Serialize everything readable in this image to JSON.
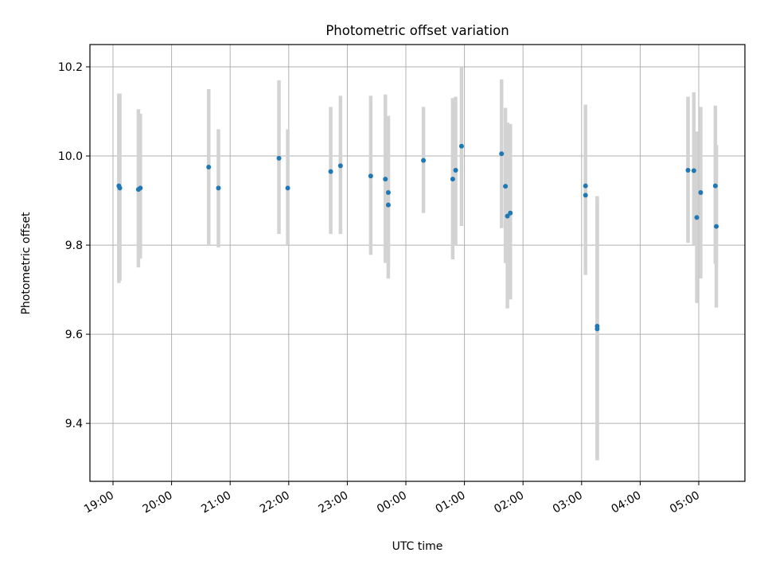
{
  "chart_data": {
    "type": "scatter",
    "title": "Photometric offset variation",
    "xlabel": "UTC time",
    "ylabel": "Photometric offset",
    "x_tick_labels": [
      "19:00",
      "20:00",
      "21:00",
      "22:00",
      "23:00",
      "00:00",
      "01:00",
      "02:00",
      "03:00",
      "04:00",
      "05:00"
    ],
    "y_tick_labels": [
      "9.4",
      "9.6",
      "9.8",
      "10.0",
      "10.2"
    ],
    "y_ticks": [
      9.4,
      9.6,
      9.8,
      10.0,
      10.2
    ],
    "ylim": [
      9.27,
      10.25
    ],
    "x_axis": "time of night, 19:00 to 05:00 UTC",
    "grid": true,
    "colors": {
      "points": "#1f77b4",
      "errorbars": "#d3d3d3",
      "grid": "#b0b0b0"
    },
    "points": [
      {
        "x": "19:06",
        "y": 9.933,
        "lo": 9.715,
        "hi": 10.14
      },
      {
        "x": "19:07",
        "y": 9.928,
        "lo": 9.72,
        "hi": 10.14
      },
      {
        "x": "19:26",
        "y": 9.925,
        "lo": 9.75,
        "hi": 10.105
      },
      {
        "x": "19:28",
        "y": 9.928,
        "lo": 9.77,
        "hi": 10.095
      },
      {
        "x": "20:38",
        "y": 9.975,
        "lo": 9.8,
        "hi": 10.15
      },
      {
        "x": "20:48",
        "y": 9.928,
        "lo": 9.795,
        "hi": 10.06
      },
      {
        "x": "21:50",
        "y": 9.995,
        "lo": 9.825,
        "hi": 10.17
      },
      {
        "x": "21:59",
        "y": 9.928,
        "lo": 9.8,
        "hi": 10.06
      },
      {
        "x": "22:43",
        "y": 9.965,
        "lo": 9.825,
        "hi": 10.11
      },
      {
        "x": "22:53",
        "y": 9.978,
        "lo": 9.825,
        "hi": 10.135
      },
      {
        "x": "23:24",
        "y": 9.955,
        "lo": 9.778,
        "hi": 10.135
      },
      {
        "x": "23:39",
        "y": 9.948,
        "lo": 9.76,
        "hi": 10.138
      },
      {
        "x": "23:42",
        "y": 9.918,
        "lo": 9.725,
        "hi": 10.09
      },
      {
        "x": "23:42",
        "y": 9.89,
        "lo": 9.75,
        "hi": 10.08
      },
      {
        "x": "00:18",
        "y": 9.99,
        "lo": 9.872,
        "hi": 10.11
      },
      {
        "x": "00:48",
        "y": 9.948,
        "lo": 9.768,
        "hi": 10.13
      },
      {
        "x": "00:51",
        "y": 9.968,
        "lo": 9.8,
        "hi": 10.133
      },
      {
        "x": "00:57",
        "y": 10.022,
        "lo": 9.843,
        "hi": 10.2
      },
      {
        "x": "01:38",
        "y": 10.005,
        "lo": 9.838,
        "hi": 10.172
      },
      {
        "x": "01:42",
        "y": 9.932,
        "lo": 9.76,
        "hi": 10.108
      },
      {
        "x": "01:44",
        "y": 9.865,
        "lo": 9.658,
        "hi": 10.075
      },
      {
        "x": "01:47",
        "y": 9.872,
        "lo": 9.678,
        "hi": 10.072
      },
      {
        "x": "03:04",
        "y": 9.933,
        "lo": 9.758,
        "hi": 10.115
      },
      {
        "x": "03:04",
        "y": 9.912,
        "lo": 9.733,
        "hi": 10.115
      },
      {
        "x": "03:16",
        "y": 9.612,
        "lo": 9.317,
        "hi": 9.91
      },
      {
        "x": "03:16",
        "y": 9.618,
        "lo": 9.32,
        "hi": 9.905
      },
      {
        "x": "04:49",
        "y": 9.968,
        "lo": 9.805,
        "hi": 10.133
      },
      {
        "x": "04:55",
        "y": 9.967,
        "lo": 9.8,
        "hi": 10.143
      },
      {
        "x": "04:58",
        "y": 9.862,
        "lo": 9.67,
        "hi": 10.055
      },
      {
        "x": "05:02",
        "y": 9.918,
        "lo": 9.725,
        "hi": 10.11
      },
      {
        "x": "05:17",
        "y": 9.933,
        "lo": 9.758,
        "hi": 10.113
      },
      {
        "x": "05:18",
        "y": 9.842,
        "lo": 9.66,
        "hi": 10.025
      }
    ]
  }
}
